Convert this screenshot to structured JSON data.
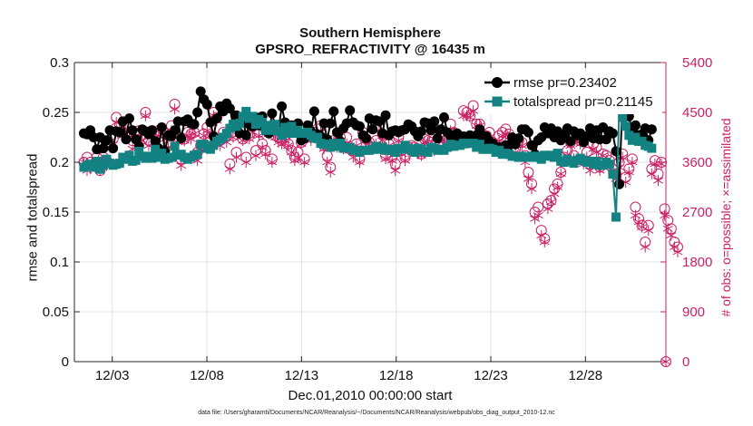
{
  "chart_data": {
    "type": "line",
    "title": "Southern Hemisphere",
    "subtitle": "GPSRO_REFRACTIVITY @ 16435 m",
    "xlabel": "Dec.01,2010 00:00:00 start",
    "ylabel": "rmse and totalspread",
    "y2label": "# of obs: o=possible; ×=assimilated",
    "footnote": "data file: /Users/gharamti/Documents/NCAR/Reanalysis/~/Documents/NCAR/Reanalysis/webpub/obs_diag_output_2010-12.nc",
    "xlim": [
      0.0,
      31.25
    ],
    "ylim": [
      0,
      0.3
    ],
    "y2lim": [
      0,
      5400
    ],
    "x_ticks": [
      2,
      7,
      12,
      17,
      22,
      27
    ],
    "x_tick_labels": [
      "12/03",
      "12/08",
      "12/13",
      "12/18",
      "12/23",
      "12/28"
    ],
    "y_ticks": [
      0,
      0.05,
      0.1,
      0.15,
      0.2,
      0.25,
      0.3
    ],
    "y_tick_labels": [
      "0",
      "0.05",
      "0.1",
      "0.15",
      "0.2",
      "0.25",
      "0.3"
    ],
    "y2_ticks": [
      0,
      900,
      1800,
      2700,
      3600,
      4500,
      5400
    ],
    "y2_tick_labels": [
      "0",
      "900",
      "1800",
      "2700",
      "3600",
      "4500",
      "5400"
    ],
    "grid": true,
    "legend_position": "top-right",
    "series": [
      {
        "name": "rmse pr=0.23402",
        "axis": "left",
        "color": "#000000",
        "marker": "circle",
        "values": [
          0.229,
          0.228,
          0.232,
          0.225,
          0.213,
          0.225,
          0.214,
          0.222,
          0.232,
          0.214,
          0.231,
          0.23,
          0.241,
          0.223,
          0.244,
          0.232,
          0.223,
          0.216,
          0.233,
          0.231,
          0.228,
          0.232,
          0.221,
          0.214,
          0.235,
          0.211,
          0.227,
          0.226,
          0.232,
          0.241,
          0.224,
          0.241,
          0.243,
          0.239,
          0.238,
          0.25,
          0.271,
          0.263,
          0.258,
          0.24,
          0.226,
          0.244,
          0.256,
          0.251,
          0.259,
          0.254,
          0.237,
          0.247,
          0.229,
          0.243,
          0.227,
          0.238,
          0.236,
          0.245,
          0.237,
          0.246,
          0.232,
          0.229,
          0.249,
          0.236,
          0.233,
          0.256,
          0.24,
          0.237,
          0.237,
          0.235,
          0.239,
          0.222,
          0.224,
          0.237,
          0.231,
          0.251,
          0.228,
          0.226,
          0.239,
          0.223,
          0.239,
          0.251,
          0.23,
          0.221,
          0.234,
          0.239,
          0.252,
          0.24,
          0.237,
          0.236,
          0.227,
          0.224,
          0.244,
          0.233,
          0.242,
          0.241,
          0.229,
          0.247,
          0.227,
          0.231,
          0.232,
          0.23,
          0.232,
          0.233,
          0.238,
          0.236,
          0.231,
          0.226,
          0.231,
          0.24,
          0.239,
          0.232,
          0.241,
          0.224,
          0.233,
          0.245,
          0.23,
          0.226,
          0.227,
          0.229,
          0.224,
          0.226,
          0.219,
          0.227,
          0.222,
          0.227,
          0.233,
          0.22,
          0.226,
          0.221,
          0.219,
          0.214,
          0.215,
          0.213,
          0.217,
          0.217,
          0.225,
          0.218,
          0.224,
          0.233,
          0.233,
          0.23,
          0.217,
          0.208,
          0.222,
          0.225,
          0.235,
          0.229,
          0.234,
          0.225,
          0.231,
          0.222,
          0.228,
          0.234,
          0.221,
          0.231,
          0.227,
          0.229,
          0.22,
          0.226,
          0.234,
          0.224,
          0.232,
          0.223,
          0.235,
          0.223,
          0.231,
          0.229,
          0.211,
          0.178,
          0.26,
          0.257,
          0.246,
          0.23,
          0.237,
          0.227,
          0.228,
          0.234,
          0.222,
          0.233
        ]
      },
      {
        "name": "totalspread pr=0.21145",
        "axis": "left",
        "color": "#138282",
        "marker": "square",
        "values": [
          0.195,
          0.197,
          0.198,
          0.195,
          0.201,
          0.193,
          0.197,
          0.203,
          0.199,
          0.197,
          0.198,
          0.199,
          0.205,
          0.203,
          0.207,
          0.201,
          0.202,
          0.211,
          0.206,
          0.204,
          0.206,
          0.204,
          0.213,
          0.205,
          0.209,
          0.203,
          0.204,
          0.205,
          0.216,
          0.207,
          0.208,
          0.205,
          0.203,
          0.205,
          0.207,
          0.208,
          0.218,
          0.218,
          0.214,
          0.213,
          0.217,
          0.221,
          0.223,
          0.225,
          0.229,
          0.234,
          0.238,
          0.236,
          0.239,
          0.246,
          0.251,
          0.244,
          0.246,
          0.238,
          0.243,
          0.24,
          0.232,
          0.237,
          0.232,
          0.238,
          0.231,
          0.227,
          0.235,
          0.229,
          0.236,
          0.229,
          0.232,
          0.229,
          0.229,
          0.23,
          0.227,
          0.224,
          0.225,
          0.219,
          0.218,
          0.218,
          0.215,
          0.219,
          0.216,
          0.219,
          0.214,
          0.215,
          0.215,
          0.212,
          0.212,
          0.21,
          0.212,
          0.212,
          0.212,
          0.213,
          0.216,
          0.213,
          0.215,
          0.212,
          0.213,
          0.212,
          0.21,
          0.214,
          0.213,
          0.217,
          0.214,
          0.212,
          0.21,
          0.214,
          0.213,
          0.211,
          0.21,
          0.215,
          0.214,
          0.212,
          0.213,
          0.212,
          0.215,
          0.218,
          0.216,
          0.217,
          0.217,
          0.219,
          0.219,
          0.219,
          0.219,
          0.215,
          0.218,
          0.213,
          0.213,
          0.214,
          0.213,
          0.21,
          0.212,
          0.208,
          0.209,
          0.208,
          0.206,
          0.206,
          0.205,
          0.206,
          0.205,
          0.205,
          0.206,
          0.205,
          0.206,
          0.203,
          0.207,
          0.206,
          0.207,
          0.205,
          0.209,
          0.201,
          0.2,
          0.203,
          0.201,
          0.199,
          0.202,
          0.204,
          0.202,
          0.2,
          0.201,
          0.198,
          0.201,
          0.197,
          0.197,
          0.2,
          0.198,
          0.188,
          0.145,
          0.254,
          0.245,
          0.236,
          0.227,
          0.222,
          0.225,
          0.221,
          0.221,
          0.217,
          0.216,
          0.214
        ]
      },
      {
        "name": "obs possible",
        "axis": "right",
        "color": "#cc1f64",
        "marker": "open-circle",
        "values": [
          3600,
          3690,
          3600,
          3540,
          3690,
          3450,
          3690,
          3630,
          3900,
          4020,
          4410,
          4260,
          4140,
          4290,
          4110,
          3990,
          4110,
          4170,
          4020,
          4500,
          3990,
          4170,
          4080,
          4170,
          3810,
          4110,
          3960,
          4260,
          4650,
          4020,
          3660,
          4020,
          4140,
          4110,
          4140,
          3780,
          3900,
          4110,
          4230,
          4050,
          4500,
          4410,
          3990,
          4140,
          4080,
          3570,
          4080,
          3780,
          4200,
          4020,
          3690,
          4080,
          4260,
          3810,
          4140,
          3930,
          3810,
          4200,
          3660,
          4080,
          4050,
          3990,
          4050,
          3930,
          3810,
          3690,
          3780,
          3960,
          3660,
          4140,
          4080,
          4140,
          4200,
          4260,
          3900,
          3720,
          3510,
          3990,
          3960,
          4050,
          3870,
          4050,
          3840,
          3810,
          3930,
          3660,
          4140,
          4020,
          3960,
          3870,
          3990,
          4230,
          4110,
          3720,
          3930,
          3690,
          3570,
          4050,
          3810,
          3690,
          3870,
          3900,
          3870,
          3840,
          3750,
          4020,
          3990,
          3960,
          3900,
          4170,
          4140,
          4050,
          3960,
          4290,
          4140,
          4110,
          4020,
          4530,
          4500,
          4440,
          4620,
          4290,
          4290,
          4050,
          4080,
          4140,
          3960,
          3900,
          4080,
          4140,
          4200,
          4110,
          3960,
          3840,
          3990,
          3960,
          3720,
          3420,
          3210,
          2700,
          2790,
          2370,
          2220,
          2850,
          2910,
          3120,
          3210,
          3420,
          3690,
          3810,
          3960,
          3720,
          4050,
          3990,
          3630,
          3780,
          3570,
          3930,
          3870,
          3510,
          3750,
          3720,
          3630,
          3480,
          3390,
          3600,
          3750,
          3330,
          3480,
          3660,
          2790,
          2580,
          2460,
          2160,
          2460,
          3480,
          3630,
          3390,
          3600,
          2760,
          2550,
          2400,
          2160,
          2070
        ]
      },
      {
        "name": "obs assimilated",
        "axis": "right",
        "color": "#cc1f64",
        "marker": "asterisk",
        "values": [
          3600,
          3450,
          3480,
          3540,
          3600,
          3450,
          3630,
          3540,
          3870,
          3930,
          4320,
          4200,
          4080,
          4170,
          4050,
          3840,
          4080,
          4050,
          3990,
          4440,
          3900,
          4110,
          3990,
          4080,
          3750,
          4020,
          3870,
          4170,
          4560,
          3960,
          3540,
          3990,
          4080,
          4020,
          4110,
          3630,
          3840,
          4080,
          4170,
          3930,
          4440,
          4350,
          3900,
          4080,
          3960,
          3480,
          4050,
          3690,
          4110,
          3990,
          3600,
          4020,
          4140,
          3720,
          4080,
          3870,
          3750,
          4110,
          3600,
          4050,
          3960,
          3930,
          3990,
          3900,
          3780,
          3630,
          3690,
          3930,
          3600,
          4050,
          3990,
          4050,
          4140,
          4140,
          3840,
          3600,
          3420,
          3960,
          3870,
          3990,
          3840,
          3930,
          3810,
          3690,
          3900,
          3600,
          4080,
          3990,
          3900,
          3840,
          3930,
          4170,
          3990,
          3660,
          3900,
          3630,
          3450,
          3990,
          3750,
          3630,
          3780,
          3870,
          3840,
          3750,
          3720,
          3960,
          3960,
          3900,
          3810,
          4110,
          4050,
          3990,
          3900,
          4170,
          4080,
          4050,
          3990,
          4440,
          4440,
          4410,
          4530,
          4260,
          4260,
          3960,
          3990,
          4050,
          3870,
          3870,
          3990,
          4080,
          4110,
          4050,
          3930,
          3780,
          3930,
          3900,
          3600,
          3300,
          3120,
          2580,
          2640,
          2280,
          2160,
          2760,
          2880,
          3030,
          3150,
          3390,
          3660,
          3720,
          3900,
          3660,
          3990,
          3930,
          3570,
          3690,
          3450,
          3840,
          3780,
          3450,
          3720,
          3630,
          3570,
          3450,
          3300,
          3510,
          3690,
          3240,
          3420,
          3600,
          2640,
          2520,
          2430,
          2070,
          2370,
          3390,
          3570,
          3270,
          3570,
          2640,
          2400,
          2280,
          2070,
          1980
        ]
      }
    ]
  }
}
